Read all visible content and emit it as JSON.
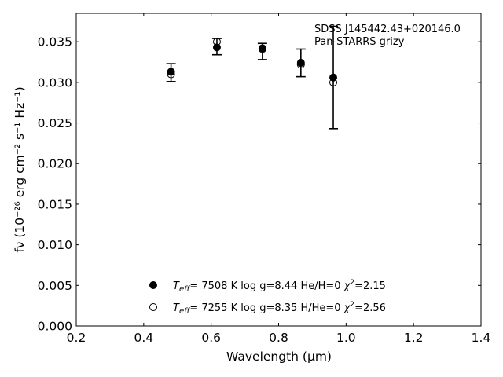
{
  "chart_data": {
    "type": "scatter",
    "xlabel": "Wavelength (μm)",
    "ylabel": "fν (10⁻²⁶ erg cm⁻² s⁻¹ Hz⁻¹)",
    "xlim": [
      0.2,
      1.4
    ],
    "ylim": [
      0.0,
      0.0385
    ],
    "x_ticks": [
      "0.2",
      "0.4",
      "0.6",
      "0.8",
      "1.0",
      "1.2",
      "1.4"
    ],
    "y_ticks": [
      "0.000",
      "0.005",
      "0.010",
      "0.015",
      "0.020",
      "0.025",
      "0.030",
      "0.035"
    ],
    "annotation": [
      "SDSS J145442.43+020146.0",
      "Pan-STARRS grizy"
    ],
    "observed": {
      "x": [
        0.481,
        0.617,
        0.752,
        0.866,
        0.962
      ],
      "y": [
        0.0312,
        0.0344,
        0.0338,
        0.0324,
        0.0306
      ],
      "yerr": [
        0.0011,
        0.001,
        0.001,
        0.0017,
        0.0063
      ]
    },
    "series": [
      {
        "name": "Teff= 7508 K log g=8.44 He/H=0 χ²=2.15",
        "marker": "filled-circle",
        "x": [
          0.481,
          0.617,
          0.752,
          0.866,
          0.962
        ],
        "y": [
          0.0313,
          0.0343,
          0.0342,
          0.0324,
          0.0306
        ]
      },
      {
        "name": "Teff= 7255 K log g=8.35 H/He=0 χ²=2.56",
        "marker": "open-circle",
        "x": [
          0.481,
          0.617,
          0.752,
          0.866,
          0.962
        ],
        "y": [
          0.031,
          0.035,
          0.0341,
          0.0322,
          0.03
        ]
      }
    ],
    "legend": [
      {
        "marker": "filled-circle",
        "teff": "7508 K",
        "logg": "log g=8.44",
        "comp": "He/H=0",
        "chi": "=2.15"
      },
      {
        "marker": "open-circle",
        "teff": "7255 K",
        "logg": "log g=8.35",
        "comp": "H/He=0",
        "chi": "=2.56"
      }
    ],
    "legend_position": "bottom-center"
  }
}
